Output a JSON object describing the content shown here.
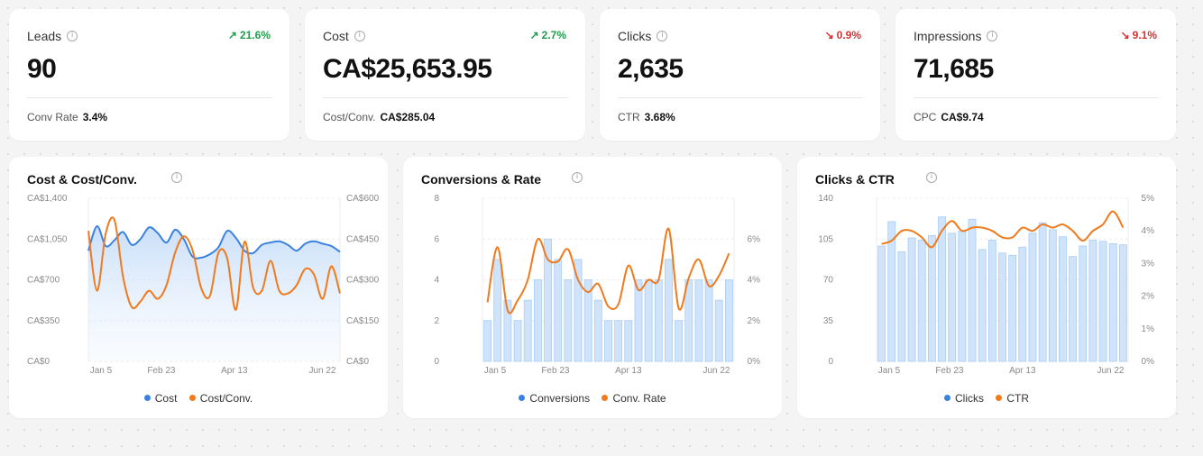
{
  "kpis": [
    {
      "label": "Leads",
      "delta": "21.6%",
      "dir": "up",
      "value": "90",
      "sub_label": "Conv Rate",
      "sub_value": "3.4%"
    },
    {
      "label": "Cost",
      "delta": "2.7%",
      "dir": "up",
      "value": "CA$25,653.95",
      "sub_label": "Cost/Conv.",
      "sub_value": "CA$285.04"
    },
    {
      "label": "Clicks",
      "delta": "0.9%",
      "dir": "down",
      "value": "2,635",
      "sub_label": "CTR",
      "sub_value": "3.68%"
    },
    {
      "label": "Impressions",
      "delta": "9.1%",
      "dir": "down",
      "value": "71,685",
      "sub_label": "CPC",
      "sub_value": "CA$9.74"
    }
  ],
  "colors": {
    "blue": "#3b82e0",
    "orange": "#f07a1e",
    "bar_fill": "#cfe3fb",
    "bar_stroke": "#a9cdf5",
    "up": "#1f9e4a",
    "down": "#d93030"
  },
  "charts": [
    {
      "title": "Cost & Cost/Conv.",
      "legend": [
        "Cost",
        "Cost/Conv."
      ]
    },
    {
      "title": "Conversions & Rate",
      "legend": [
        "Conversions",
        "Conv. Rate"
      ]
    },
    {
      "title": "Clicks & CTR",
      "legend": [
        "Clicks",
        "CTR"
      ]
    }
  ],
  "chart_data": [
    {
      "type": "area",
      "title": "Cost & Cost/Conv.",
      "x_ticks": [
        "Jan 5",
        "Feb 23",
        "Apr 13",
        "Jun 22"
      ],
      "y_left_ticks": [
        "CA$0",
        "CA$350",
        "CA$700",
        "CA$1,050",
        "CA$1,400"
      ],
      "y_right_ticks": [
        "CA$0",
        "CA$150",
        "CA$300",
        "CA$450",
        "CA$600"
      ],
      "ylim_left": [
        0,
        1400
      ],
      "ylim_right": [
        0,
        600
      ],
      "series": [
        {
          "name": "Cost",
          "axis": "left",
          "style": "area",
          "values": [
            950,
            1160,
            990,
            1040,
            1110,
            1000,
            1050,
            1150,
            1100,
            1020,
            1130,
            1050,
            900,
            890,
            920,
            980,
            1120,
            1060,
            950,
            930,
            1000,
            1020,
            1030,
            1000,
            950,
            1010,
            1030,
            1010,
            990,
            940
          ]
        },
        {
          "name": "Cost/Conv.",
          "axis": "right",
          "style": "line",
          "values": [
            480,
            260,
            470,
            520,
            310,
            200,
            220,
            260,
            230,
            280,
            400,
            460,
            410,
            270,
            240,
            400,
            380,
            190,
            440,
            270,
            260,
            370,
            260,
            250,
            280,
            340,
            320,
            230,
            350,
            250
          ]
        }
      ]
    },
    {
      "type": "bar",
      "title": "Conversions & Rate",
      "x_ticks": [
        "Jan 5",
        "Feb 23",
        "Apr 13",
        "Jun 22"
      ],
      "y_left_ticks": [
        "0",
        "2",
        "4",
        "6",
        "8"
      ],
      "y_right_ticks": [
        "0%",
        "2%",
        "4%",
        "6%"
      ],
      "ylim_left": [
        0,
        8
      ],
      "ylim_right": [
        0,
        8
      ],
      "series": [
        {
          "name": "Conversions",
          "axis": "left",
          "style": "bar",
          "values": [
            2,
            5,
            3,
            2,
            3,
            4,
            6,
            5,
            4,
            5,
            4,
            3,
            2,
            2,
            2,
            4,
            4,
            4,
            5,
            2,
            4,
            4,
            4,
            3,
            4
          ]
        },
        {
          "name": "Conv. Rate",
          "axis": "right",
          "style": "line",
          "values": [
            2.9,
            5.6,
            2.5,
            3.0,
            4.0,
            6.0,
            5.0,
            4.9,
            5.5,
            4.0,
            3.4,
            3.8,
            2.7,
            2.8,
            4.7,
            3.5,
            4.0,
            4.0,
            6.5,
            2.6,
            4.1,
            5.0,
            3.7,
            4.2,
            5.3
          ]
        }
      ]
    },
    {
      "type": "bar",
      "title": "Clicks & CTR",
      "x_ticks": [
        "Jan 5",
        "Feb 23",
        "Apr 13",
        "Jun 22"
      ],
      "y_left_ticks": [
        "0",
        "35",
        "70",
        "105",
        "140"
      ],
      "y_right_ticks": [
        "0%",
        "1%",
        "2%",
        "3%",
        "4%",
        "5%"
      ],
      "ylim_left": [
        0,
        140
      ],
      "ylim_right": [
        0,
        5
      ],
      "series": [
        {
          "name": "Clicks",
          "axis": "left",
          "style": "bar",
          "values": [
            99,
            120,
            94,
            106,
            104,
            108,
            124,
            110,
            112,
            122,
            96,
            104,
            93,
            91,
            98,
            110,
            119,
            113,
            107,
            90,
            99,
            104,
            103,
            101,
            100
          ]
        },
        {
          "name": "CTR",
          "axis": "right",
          "style": "line",
          "values": [
            3.6,
            3.7,
            4.0,
            4.0,
            3.8,
            3.5,
            4.0,
            4.3,
            4.0,
            4.1,
            4.1,
            4.0,
            3.8,
            3.8,
            4.1,
            4.0,
            4.2,
            4.1,
            4.2,
            4.0,
            3.7,
            4.0,
            4.2,
            4.6,
            4.1
          ]
        }
      ]
    }
  ]
}
